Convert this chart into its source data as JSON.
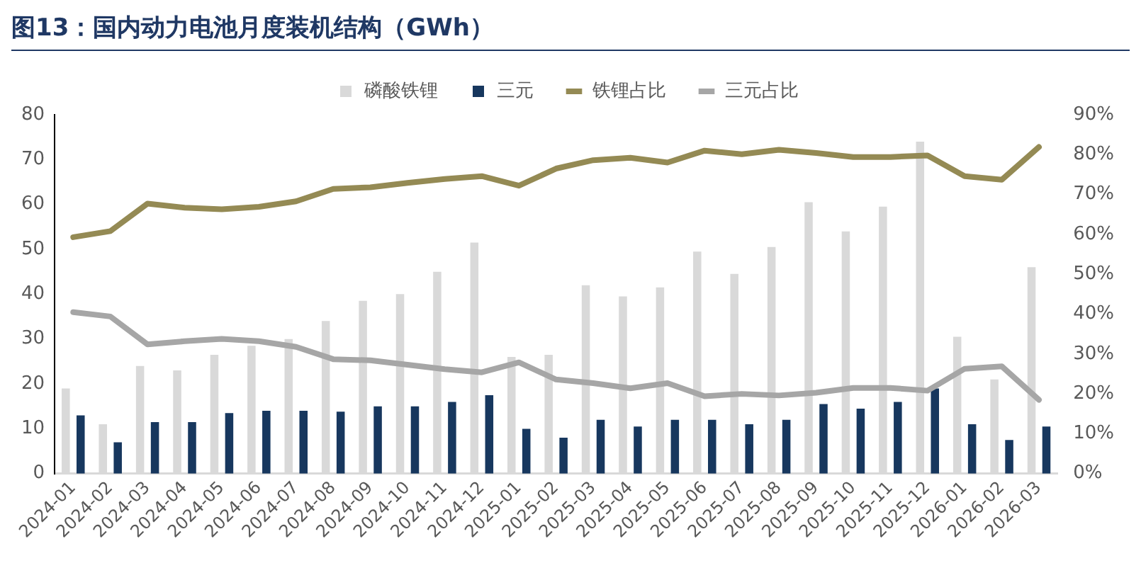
{
  "chart_data": {
    "type": "bar",
    "title": "图13：国内动力电池月度装机结构（GWh）",
    "categories": [
      "2024-01",
      "2024-02",
      "2024-03",
      "2024-04",
      "2024-05",
      "2024-06",
      "2024-07",
      "2024-08",
      "2024-09",
      "2024-10",
      "2024-11",
      "2024-12",
      "2025-01",
      "2025-02",
      "2025-03",
      "2025-04",
      "2025-05",
      "2025-06",
      "2025-07",
      "2025-08",
      "2025-09",
      "2025-10",
      "2025-11",
      "2025-12",
      "2026-01",
      "2026-02",
      "2026-03"
    ],
    "series": [
      {
        "name": "磷酸铁锂",
        "color": "#d9d9d9",
        "values": [
          19,
          11,
          24,
          23,
          26.5,
          28.5,
          30,
          34,
          38.5,
          40,
          45,
          51.5,
          26,
          26.5,
          42,
          39.5,
          41.5,
          49.5,
          44.5,
          50.5,
          60.5,
          54,
          59.5,
          74,
          30.5,
          21,
          46
        ]
      },
      {
        "name": "三元",
        "color": "#17375e",
        "values": [
          13,
          7,
          11.5,
          11.5,
          13.5,
          14,
          14,
          13.8,
          15,
          15,
          16,
          17.5,
          10,
          8,
          12,
          10.5,
          12,
          12,
          11,
          12,
          15.5,
          14.5,
          16,
          19,
          11,
          7.5,
          10.5
        ]
      },
      {
        "name": "铁锂占比",
        "type": "line",
        "axis": "y2",
        "color": "#948a54",
        "values": [
          59.3,
          60.8,
          67.7,
          66.7,
          66.3,
          66.9,
          68.3,
          71.4,
          71.8,
          72.9,
          73.9,
          74.6,
          72.2,
          76.5,
          78.6,
          79.2,
          78,
          81,
          80.1,
          81.2,
          80.4,
          79.4,
          79.4,
          79.8,
          74.6,
          73.7,
          81.9
        ]
      },
      {
        "name": "三元占比",
        "type": "line",
        "axis": "y2",
        "color": "#a6a6a6",
        "values": [
          40.5,
          39.4,
          32.4,
          33.2,
          33.8,
          33.2,
          31.8,
          28.7,
          28.4,
          27.3,
          26.2,
          25.4,
          27.9,
          23.6,
          22.7,
          21.4,
          22.7,
          19.4,
          20,
          19.6,
          20.3,
          21.5,
          21.5,
          20.8,
          26.3,
          26.9,
          18.5
        ]
      }
    ],
    "ylim": [
      0,
      80
    ],
    "yticks": [
      0,
      10,
      20,
      30,
      40,
      50,
      60,
      70,
      80
    ],
    "y2lim": [
      0,
      90
    ],
    "y2ticks": [
      {
        "value": 0,
        "label": "0%"
      },
      {
        "value": 10,
        "label": "10%"
      },
      {
        "value": 20,
        "label": "20%"
      },
      {
        "value": 30,
        "label": "30%"
      },
      {
        "value": 40,
        "label": "40%"
      },
      {
        "value": 50,
        "label": "50%"
      },
      {
        "value": 60,
        "label": "60%"
      },
      {
        "value": 70,
        "label": "70%"
      },
      {
        "value": 80,
        "label": "80%"
      },
      {
        "value": 90,
        "label": "90%"
      }
    ],
    "legend": "top",
    "grid": false,
    "marker": "none",
    "line_style": "solid"
  }
}
